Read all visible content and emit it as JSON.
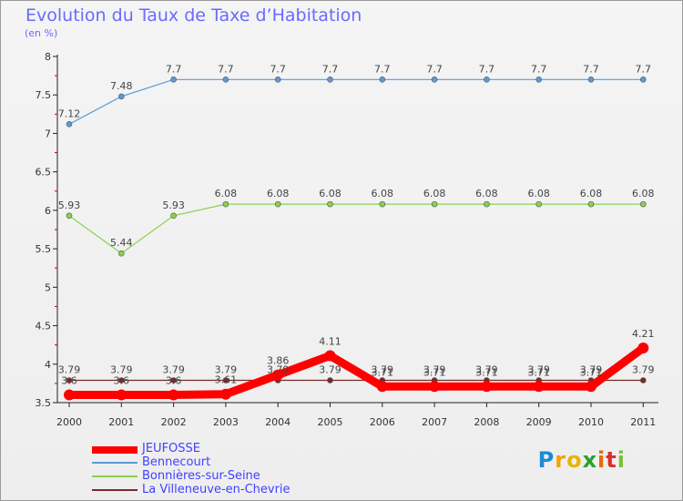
{
  "chart_data": {
    "type": "line",
    "title": "Evolution du Taux de Taxe d’Habitation",
    "subtitle": "(en %)",
    "categories": [
      "2000",
      "2001",
      "2002",
      "2003",
      "2004",
      "2005",
      "2006",
      "2007",
      "2008",
      "2009",
      "2010",
      "2011"
    ],
    "ylim": [
      3.5,
      8
    ],
    "yticks": [
      "3.5",
      "4",
      "4.5",
      "5",
      "5.5",
      "6",
      "6.5",
      "7",
      "7.5",
      "8"
    ],
    "grid": "none",
    "legend_placement": "bottom-left",
    "series": [
      {
        "name": "JEUFOSSE",
        "color": "#ff0000",
        "values": [
          3.6,
          3.6,
          3.6,
          3.61,
          3.86,
          4.11,
          3.71,
          3.71,
          3.71,
          3.71,
          3.71,
          4.21
        ],
        "labels": [
          "3.6",
          "3.6",
          "3.6",
          "3.61",
          "3.86",
          "4.11",
          "3.71",
          "3.71",
          "3.71",
          "3.71",
          "3.71",
          "4.21"
        ]
      },
      {
        "name": "Bennecourt",
        "color": "#5a9bd5",
        "values": [
          7.12,
          7.48,
          7.7,
          7.7,
          7.7,
          7.7,
          7.7,
          7.7,
          7.7,
          7.7,
          7.7,
          7.7
        ],
        "labels": [
          "7.12",
          "7.48",
          "7.7",
          "7.7",
          "7.7",
          "7.7",
          "7.7",
          "7.7",
          "7.7",
          "7.7",
          "7.7",
          "7.7"
        ]
      },
      {
        "name": "Bonnières-sur-Seine",
        "color": "#8ccf50",
        "values": [
          5.93,
          5.44,
          5.93,
          6.08,
          6.08,
          6.08,
          6.08,
          6.08,
          6.08,
          6.08,
          6.08,
          6.08
        ],
        "labels": [
          "5.93",
          "5.44",
          "5.93",
          "6.08",
          "6.08",
          "6.08",
          "6.08",
          "6.08",
          "6.08",
          "6.08",
          "6.08",
          "6.08"
        ]
      },
      {
        "name": "La Villeneuve-en-Chevrie",
        "color": "#7a2a2a",
        "values": [
          3.79,
          3.79,
          3.79,
          3.79,
          3.79,
          3.79,
          3.79,
          3.79,
          3.79,
          3.79,
          3.79,
          3.79
        ],
        "labels": [
          "3.79",
          "3.79",
          "3.79",
          "3.79",
          "3.79",
          "3.79",
          "3.79",
          "3.79",
          "3.79",
          "3.79",
          "3.79",
          "3.79"
        ]
      }
    ]
  },
  "brand": {
    "letters": [
      "P",
      "r",
      "o",
      "x",
      "i",
      "t",
      "i"
    ],
    "colors": [
      "#1f8ad6",
      "#f4a300",
      "#e8b400",
      "#2e9f2e",
      "#e86a00",
      "#d92f2f",
      "#7cbf35"
    ]
  }
}
